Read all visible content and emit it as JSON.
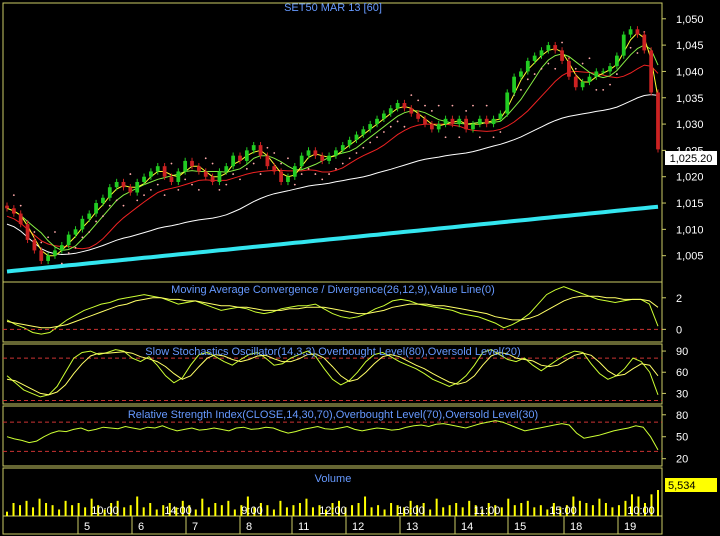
{
  "colors": {
    "background": "#000000",
    "frame": "#cccc66",
    "title": "#6699ff",
    "axis_text": "#ffffff",
    "up_candle": "#22cc22",
    "down_candle": "#cc2222",
    "ma_fast": "#ffff33",
    "ma_mid": "#88ee44",
    "ma_slow": "#ee2222",
    "ma_long": "#ffffff",
    "ma_longest": "#33e6f0",
    "sar_dots": "#ffaaaa",
    "osc_main": "#ccff33",
    "osc_signal": "#ffff66",
    "ref_line": "#cc3333",
    "volume_bar": "#ffff00",
    "last_price_bg": "#ffffff",
    "last_volume_bg": "#ffff00"
  },
  "chart_data": [
    {
      "type": "candlestick",
      "title": "SET50 MAR 13   [60]",
      "ylim": [
        1000,
        1053
      ],
      "y_ticks": [
        "1,050",
        "1,045",
        "1,040",
        "1,035",
        "1,030",
        "1,025",
        "1,020",
        "1,015",
        "1,010",
        "1,005"
      ],
      "y_tick_values": [
        1050,
        1045,
        1040,
        1035,
        1030,
        1025,
        1020,
        1015,
        1010,
        1005
      ],
      "last_price_label": "1,025.20",
      "last_price": 1025.2,
      "candles_close": [
        1014,
        1013,
        1011,
        1008,
        1006,
        1004,
        1005,
        1006,
        1007,
        1009,
        1010,
        1012,
        1013,
        1015,
        1016,
        1018,
        1019,
        1018,
        1017,
        1019,
        1020,
        1021,
        1022,
        1020,
        1019,
        1021,
        1023,
        1022,
        1021,
        1020,
        1019,
        1021,
        1022,
        1024,
        1023,
        1025,
        1026,
        1024,
        1022,
        1021,
        1019,
        1020,
        1022,
        1024,
        1025,
        1024,
        1023,
        1024,
        1025,
        1026,
        1027,
        1028,
        1029,
        1030,
        1031,
        1032,
        1033,
        1034,
        1033,
        1032,
        1031,
        1030,
        1029,
        1030,
        1031,
        1030,
        1031,
        1029,
        1030,
        1031,
        1030,
        1031,
        1032,
        1036,
        1039,
        1040,
        1042,
        1043,
        1044,
        1045,
        1044,
        1042,
        1039,
        1037,
        1038,
        1039,
        1040,
        1040,
        1041,
        1043,
        1047,
        1048,
        1047,
        1044,
        1036,
        1025.2
      ]
    },
    {
      "type": "line",
      "title": "Moving Average Convergence / Divergence(26,12,9),Value Line(0)",
      "y_ticks": [
        "2",
        "0"
      ],
      "y_tick_values": [
        2,
        0
      ],
      "ylim": [
        -0.8,
        3.0
      ],
      "series": [
        {
          "role": "macd",
          "values": [
            0.6,
            0.3,
            0.1,
            -0.2,
            -0.3,
            -0.2,
            0.2,
            0.6,
            0.9,
            1.2,
            1.4,
            1.6,
            1.7,
            1.9,
            2.0,
            2.1,
            2.2,
            2.1,
            2.0,
            1.8,
            1.6,
            1.7,
            1.8,
            1.6,
            1.4,
            1.2,
            1.3,
            1.4,
            1.3,
            1.1,
            1.0,
            1.1,
            1.3,
            1.4,
            1.5,
            1.5,
            1.6,
            1.3,
            1.0,
            0.8,
            0.7,
            0.8,
            1.0,
            1.3,
            1.5,
            1.8,
            1.9,
            1.8,
            1.6,
            1.5,
            1.4,
            1.3,
            1.2,
            1.0,
            0.9,
            0.8,
            0.6,
            0.4,
            0.1,
            0.3,
            0.6,
            1.0,
            1.6,
            2.2,
            2.5,
            2.7,
            2.5,
            2.3,
            2.1,
            1.9,
            1.8,
            1.7,
            1.8,
            1.9,
            1.9,
            1.6,
            0.2
          ]
        },
        {
          "role": "signal",
          "values": [
            0.5,
            0.4,
            0.3,
            0.2,
            0.1,
            0.1,
            0.2,
            0.3,
            0.5,
            0.7,
            0.9,
            1.1,
            1.3,
            1.5,
            1.6,
            1.8,
            1.9,
            2.0,
            2.0,
            1.9,
            1.9,
            1.8,
            1.8,
            1.7,
            1.6,
            1.5,
            1.5,
            1.4,
            1.4,
            1.3,
            1.2,
            1.2,
            1.2,
            1.3,
            1.3,
            1.4,
            1.4,
            1.4,
            1.3,
            1.2,
            1.1,
            1.0,
            1.0,
            1.1,
            1.2,
            1.4,
            1.5,
            1.6,
            1.6,
            1.6,
            1.5,
            1.5,
            1.4,
            1.3,
            1.2,
            1.1,
            1.0,
            0.8,
            0.7,
            0.6,
            0.6,
            0.7,
            0.9,
            1.2,
            1.5,
            1.8,
            2.0,
            2.1,
            2.1,
            2.1,
            2.0,
            2.0,
            1.9,
            1.9,
            1.9,
            1.8,
            1.4
          ]
        }
      ]
    },
    {
      "type": "line",
      "title": "Slow Stochastics Oscillator(14,3,3),Overbought Level(80),Oversold Level(20)",
      "y_ticks": [
        "90",
        "60",
        "30"
      ],
      "y_tick_values": [
        90,
        60,
        30
      ],
      "ylim": [
        15,
        100
      ],
      "reference_lines": [
        80,
        20
      ],
      "series": [
        {
          "role": "k",
          "values": [
            55,
            45,
            35,
            30,
            25,
            28,
            40,
            60,
            80,
            88,
            90,
            85,
            88,
            92,
            90,
            80,
            75,
            82,
            70,
            55,
            45,
            52,
            70,
            85,
            88,
            82,
            75,
            70,
            78,
            85,
            88,
            80,
            70,
            72,
            80,
            85,
            90,
            82,
            65,
            50,
            42,
            48,
            60,
            75,
            85,
            88,
            82,
            75,
            70,
            65,
            58,
            50,
            45,
            40,
            45,
            55,
            70,
            88,
            92,
            85,
            78,
            75,
            80,
            70,
            62,
            70,
            78,
            85,
            90,
            88,
            72,
            58,
            50,
            55,
            65,
            80,
            75,
            60,
            28
          ]
        },
        {
          "role": "d",
          "values": [
            50,
            48,
            42,
            36,
            30,
            28,
            32,
            42,
            58,
            72,
            83,
            87,
            87,
            88,
            89,
            87,
            82,
            79,
            75,
            68,
            58,
            50,
            55,
            68,
            80,
            85,
            83,
            78,
            75,
            78,
            83,
            84,
            79,
            75,
            75,
            79,
            85,
            86,
            80,
            68,
            55,
            47,
            50,
            60,
            72,
            82,
            85,
            82,
            76,
            70,
            65,
            58,
            52,
            46,
            43,
            46,
            55,
            70,
            83,
            88,
            86,
            80,
            78,
            76,
            70,
            68,
            70,
            77,
            84,
            87,
            84,
            74,
            62,
            55,
            57,
            65,
            72,
            70,
            55
          ]
        }
      ]
    },
    {
      "type": "line",
      "title": "Relative Strength Index(CLOSE,14,30,70),Overbought Level(70),Oversold Level(30)",
      "y_ticks": [
        "80",
        "50",
        "20"
      ],
      "y_tick_values": [
        80,
        50,
        20
      ],
      "ylim": [
        10,
        92
      ],
      "reference_lines": [
        70,
        30
      ],
      "series": [
        {
          "role": "rsi",
          "values": [
            50,
            47,
            45,
            42,
            44,
            50,
            55,
            58,
            57,
            60,
            62,
            58,
            60,
            63,
            62,
            61,
            64,
            62,
            60,
            63,
            62,
            65,
            61,
            58,
            60,
            62,
            59,
            60,
            62,
            60,
            58,
            62,
            63,
            60,
            61,
            63,
            62,
            58,
            55,
            57,
            60,
            62,
            64,
            61,
            60,
            62,
            64,
            60,
            58,
            60,
            62,
            61,
            59,
            60,
            63,
            65,
            66,
            64,
            67,
            68,
            66,
            64,
            62,
            65,
            68,
            70,
            72,
            70,
            66,
            62,
            58,
            60,
            62,
            64,
            66,
            68,
            66,
            55,
            48,
            50,
            52,
            55,
            58,
            60,
            62,
            65,
            63,
            50,
            32
          ]
        }
      ]
    },
    {
      "type": "bar",
      "title": "Volume",
      "last_volume_label": "5,534",
      "values": [
        2,
        6,
        5,
        7,
        4,
        8,
        6,
        5,
        3,
        7,
        5,
        6,
        4,
        8,
        5,
        3,
        6,
        7,
        4,
        5,
        9,
        4,
        6,
        3,
        5,
        6,
        4,
        7,
        5,
        3,
        8,
        4,
        6,
        5,
        7,
        3,
        5,
        9,
        4,
        6,
        5,
        3,
        7,
        4,
        5,
        6,
        8,
        4,
        5,
        3,
        6,
        7,
        4,
        5,
        6,
        9,
        4,
        5,
        3,
        6,
        5,
        4,
        7,
        5,
        6,
        3,
        8,
        4,
        5,
        6,
        4,
        7,
        5,
        3,
        6,
        5,
        4,
        8,
        5,
        6,
        7,
        4,
        5,
        3,
        6,
        4,
        5,
        9,
        7,
        6,
        5,
        8,
        6,
        4,
        5,
        7,
        10,
        9,
        6,
        10,
        12
      ]
    }
  ],
  "x_axis": {
    "time_labels": [
      "10:00",
      "14:00",
      "9:00",
      "12:00",
      "16:00",
      "11:00",
      "15:00",
      "10:00"
    ],
    "day_labels": [
      "5",
      "6",
      "7",
      "8",
      "11",
      "12",
      "13",
      "14",
      "15",
      "18",
      "19"
    ]
  }
}
